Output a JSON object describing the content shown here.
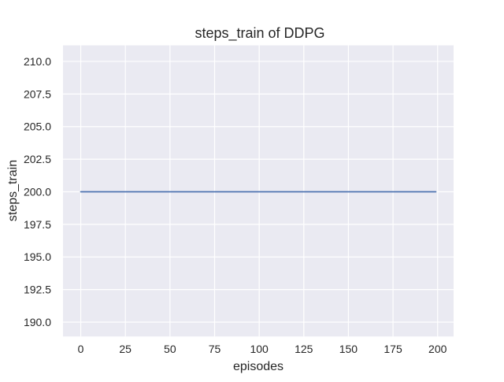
{
  "chart_data": {
    "type": "line",
    "title": "steps_train of DDPG",
    "xlabel": "episodes",
    "ylabel": "steps_train",
    "x_ticks": [
      0,
      25,
      50,
      75,
      100,
      125,
      150,
      175,
      200
    ],
    "y_ticks": [
      "210.0",
      "207.5",
      "205.0",
      "202.5",
      "200.0",
      "197.5",
      "195.0",
      "192.5",
      "190.0"
    ],
    "xlim": [
      -9.95,
      208.95
    ],
    "ylim": [
      188.9,
      211.23
    ],
    "grid": true,
    "legend": "none",
    "plot_bg_color": "#eaeaf2",
    "grid_color": "#ffffff",
    "text_color": "#262626",
    "series": [
      {
        "name": "steps_train",
        "color": "#4c72b0",
        "x": [
          0,
          199
        ],
        "values": [
          200,
          200
        ],
        "note": "constant horizontal line at y=200 spanning episodes 0 to 199"
      }
    ]
  }
}
